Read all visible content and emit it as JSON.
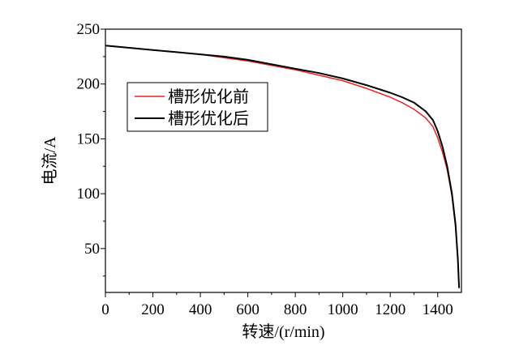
{
  "chart_data": {
    "type": "line",
    "title": "",
    "xlabel": "转速/(r/min)",
    "ylabel": "电流/A",
    "xlim": [
      0,
      1500
    ],
    "ylim": [
      10,
      250
    ],
    "xticks": [
      0,
      200,
      400,
      600,
      800,
      1000,
      1200,
      1400
    ],
    "yticks": [
      50,
      100,
      150,
      200,
      250
    ],
    "grid": false,
    "legend_position": "upper-left",
    "series": [
      {
        "name": "槽形优化前",
        "color": "#e8251f",
        "x": [
          0,
          100,
          200,
          300,
          400,
          500,
          600,
          700,
          800,
          900,
          1000,
          1100,
          1200,
          1250,
          1300,
          1350,
          1380,
          1400,
          1420,
          1440,
          1460,
          1475,
          1485,
          1490
        ],
        "y": [
          235,
          233,
          231,
          229,
          227,
          224,
          221,
          217,
          213,
          208,
          203,
          196,
          188,
          183,
          177,
          169,
          161,
          151,
          138,
          122,
          98,
          70,
          40,
          14
        ]
      },
      {
        "name": "槽形优化后",
        "color": "#000000",
        "x": [
          0,
          100,
          200,
          300,
          400,
          500,
          600,
          700,
          800,
          900,
          1000,
          1100,
          1200,
          1250,
          1300,
          1350,
          1380,
          1400,
          1420,
          1440,
          1460,
          1475,
          1485,
          1490
        ],
        "y": [
          235,
          233,
          231,
          229,
          227,
          225,
          222,
          218,
          214,
          210,
          205,
          199,
          192,
          188,
          183,
          175,
          167,
          157,
          143,
          125,
          100,
          72,
          40,
          14
        ]
      }
    ]
  }
}
